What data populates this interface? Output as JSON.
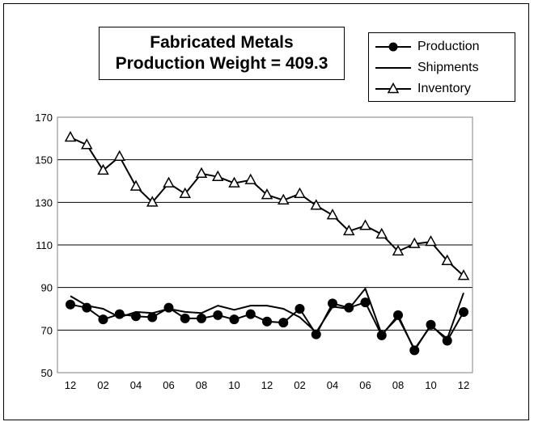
{
  "chart_data": {
    "type": "line",
    "title_lines": [
      "Fabricated Metals",
      "Production Weight = 409.3"
    ],
    "xlabel": "",
    "ylabel": "",
    "ylim": [
      50,
      170
    ],
    "yticks": [
      50,
      70,
      90,
      110,
      130,
      150,
      170
    ],
    "x_tick_labels": [
      "12",
      "02",
      "04",
      "06",
      "08",
      "10",
      "12",
      "02",
      "04",
      "06",
      "08",
      "10",
      "12"
    ],
    "grid": "horizontal",
    "legend_position": "top-right",
    "series": [
      {
        "name": "Production",
        "marker": "circle",
        "values": [
          82,
          80.5,
          75,
          77.5,
          76.5,
          76,
          80.5,
          75.5,
          75.5,
          77,
          75,
          77.5,
          74,
          73.5,
          80,
          68,
          82.5,
          80.5,
          83,
          67.5,
          77,
          60.5,
          72.5,
          65,
          78.5
        ]
      },
      {
        "name": "Shipments",
        "marker": "none",
        "values": [
          86,
          81.5,
          80,
          76,
          78.5,
          78,
          80,
          78.5,
          78,
          81.5,
          79.5,
          81.5,
          81.5,
          80,
          76,
          69,
          81,
          80,
          89.5,
          68,
          76,
          61,
          72,
          66,
          87.5
        ]
      },
      {
        "name": "Inventory",
        "marker": "triangle",
        "values": [
          160.5,
          157,
          145,
          151.5,
          137.5,
          130,
          139,
          134,
          143.5,
          142,
          139,
          140.5,
          133.5,
          131,
          134,
          128.5,
          124,
          116.5,
          119,
          115,
          107,
          110.5,
          111.5,
          102.5,
          95.5
        ]
      }
    ]
  }
}
